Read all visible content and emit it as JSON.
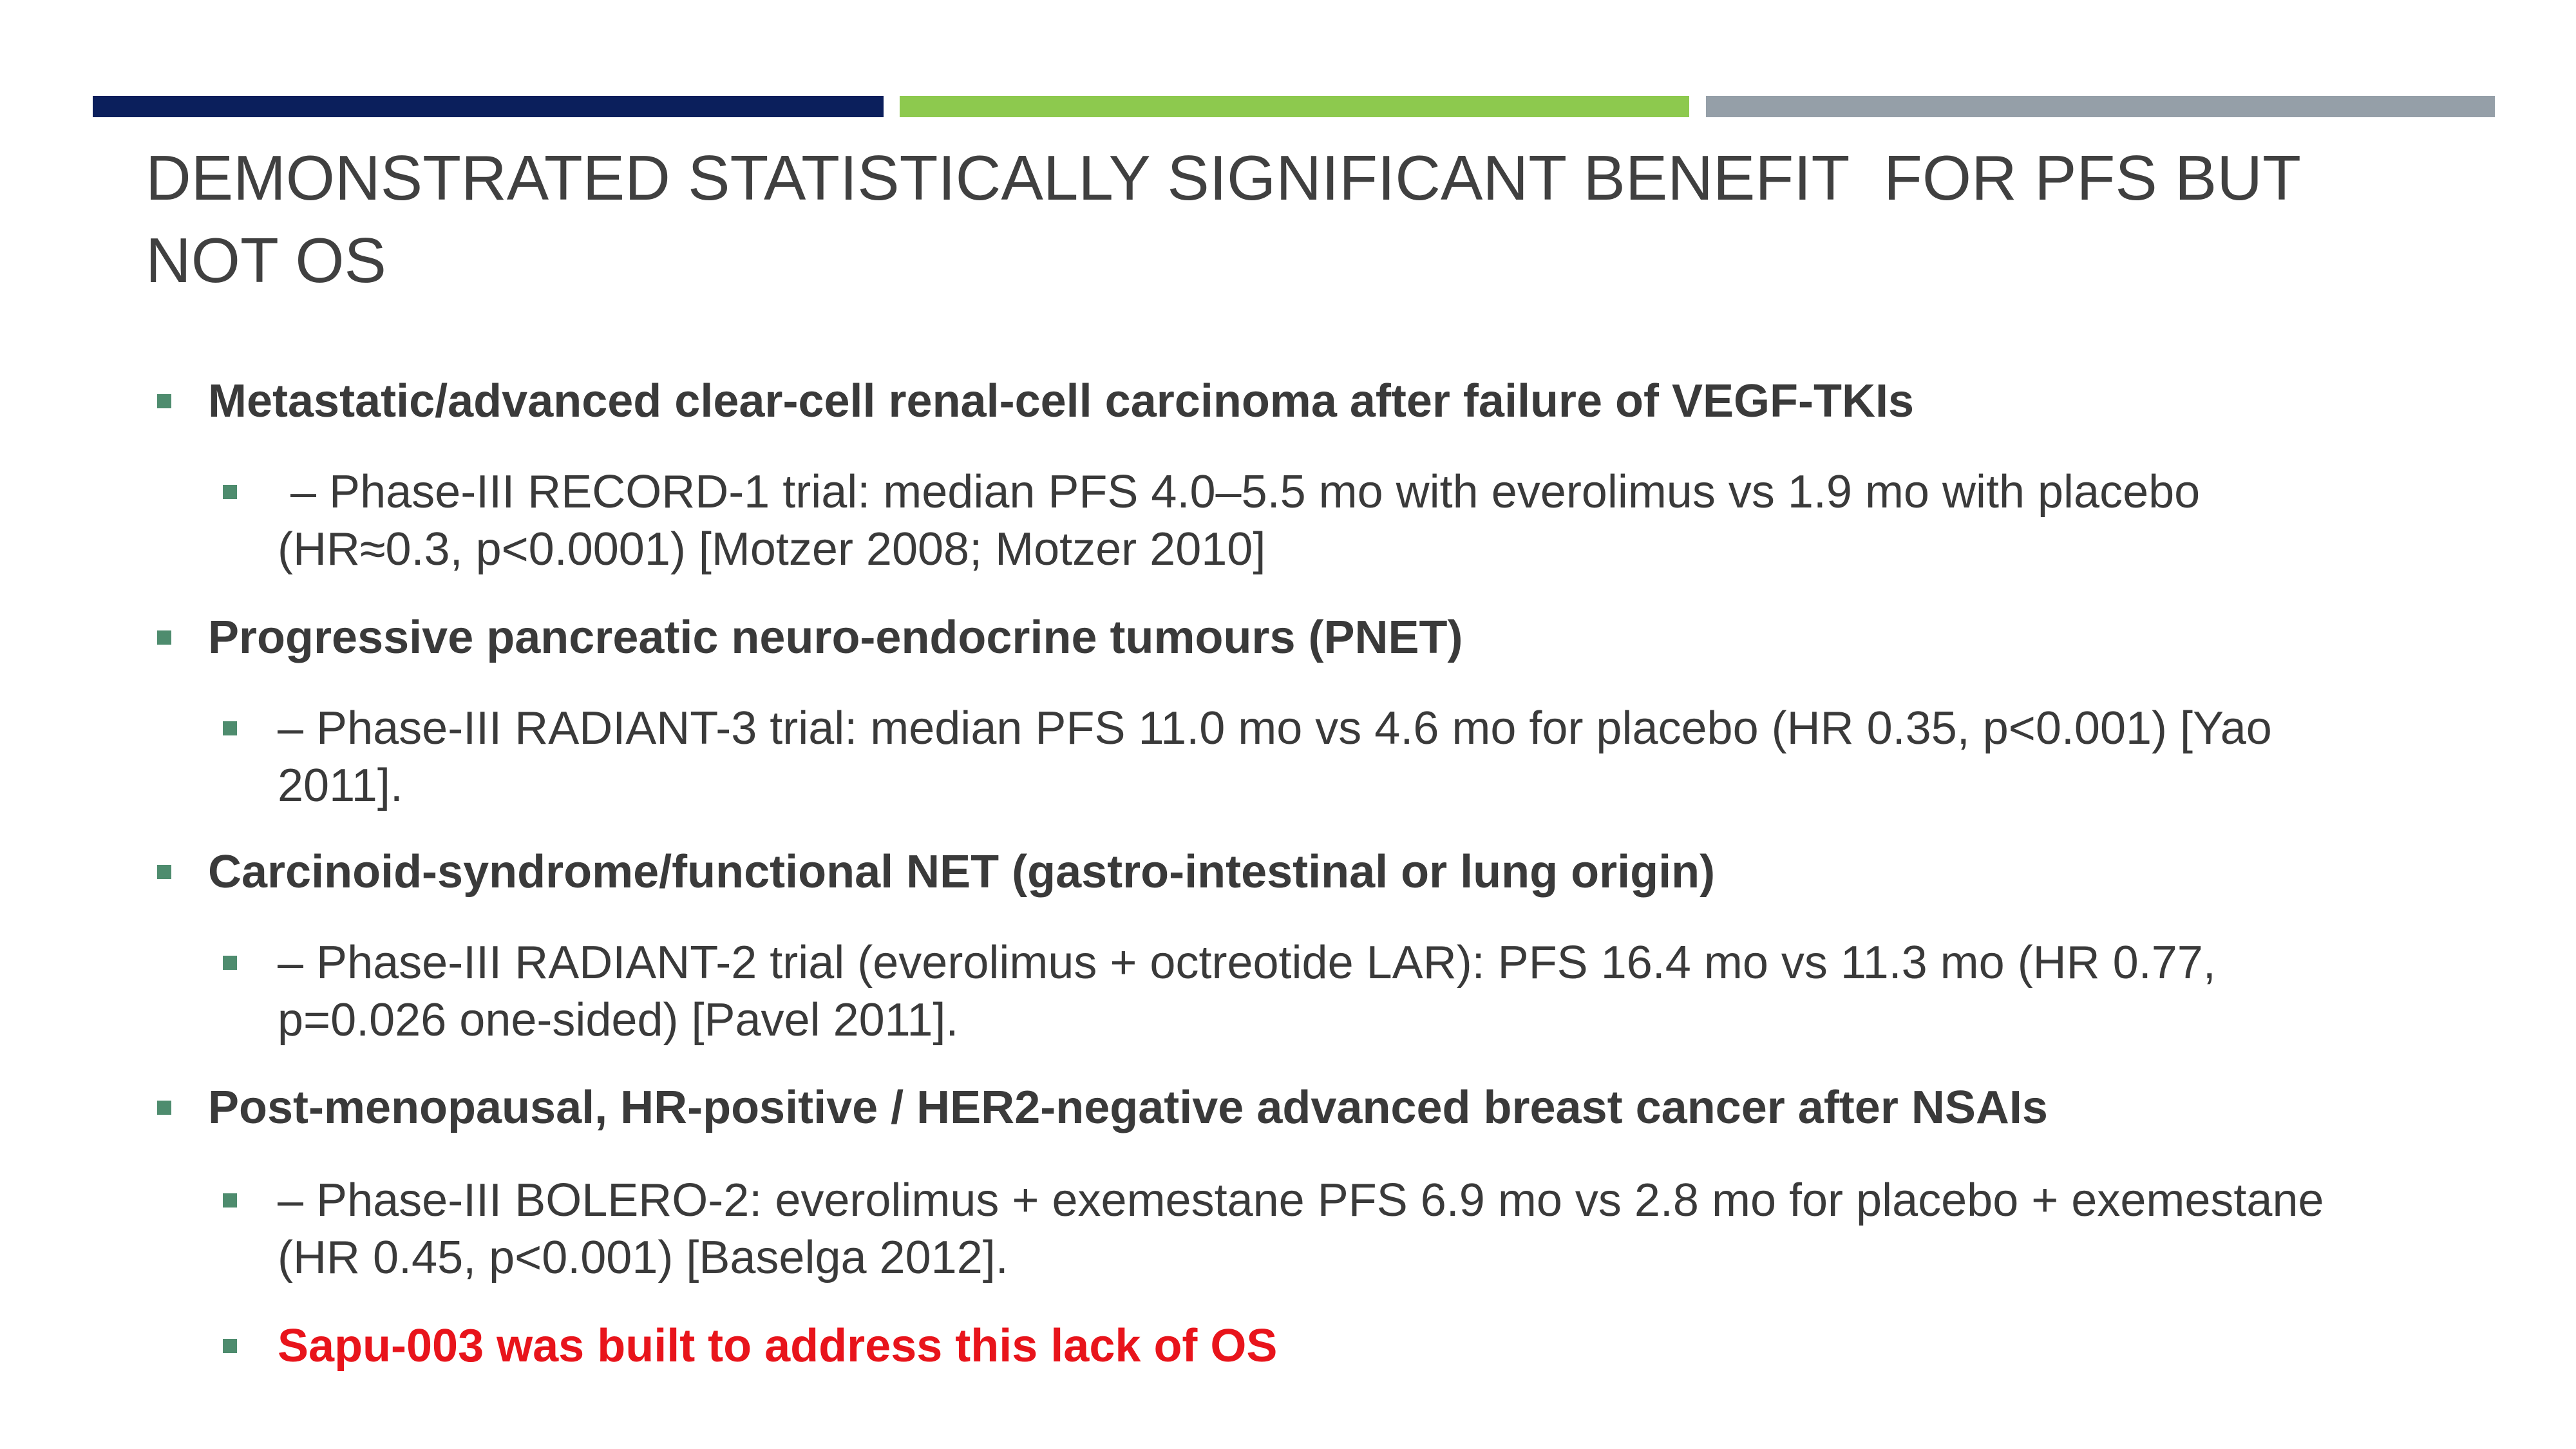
{
  "header": {
    "title_lines": [
      "DEMONSTRATED STATISTICALLY SIGNIFICANT BENEFIT  FOR PFS BUT",
      "NOT OS"
    ]
  },
  "bullets": [
    {
      "text": "Metastatic/advanced clear-cell renal-cell carcinoma after failure of VEGF-TKIs",
      "sub_lines": [
        " – Phase-III RECORD-1 trial: median PFS 4.0–5.5 mo with everolimus vs 1.9 mo with placebo",
        "(HR≈0.3, p<0.0001) [Motzer 2008; Motzer 2010]"
      ]
    },
    {
      "text": "Progressive pancreatic neuro-endocrine tumours (PNET)",
      "sub_lines": [
        "– Phase-III RADIANT-3 trial: median PFS 11.0 mo vs 4.6 mo for placebo (HR 0.35, p<0.001) [Yao",
        "2011]."
      ]
    },
    {
      "text": "Carcinoid-syndrome/functional NET (gastro-intestinal or lung origin)",
      "sub_lines": [
        "– Phase-III RADIANT-2 trial (everolimus + octreotide LAR): PFS 16.4 mo vs 11.3 mo (HR 0.77,",
        "p=0.026 one-sided) [Pavel 2011]."
      ]
    },
    {
      "text": "Post-menopausal, HR-positive / HER2-negative advanced breast cancer after NSAIs",
      "sub_lines": [
        "– Phase-III BOLERO-2: everolimus + exemestane PFS 6.9 mo vs 2.8 mo for placebo + exemestane",
        "(HR 0.45, p<0.001) [Baselga 2012]."
      ]
    }
  ],
  "closing": "Sapu-003 was built to address this lack of OS"
}
